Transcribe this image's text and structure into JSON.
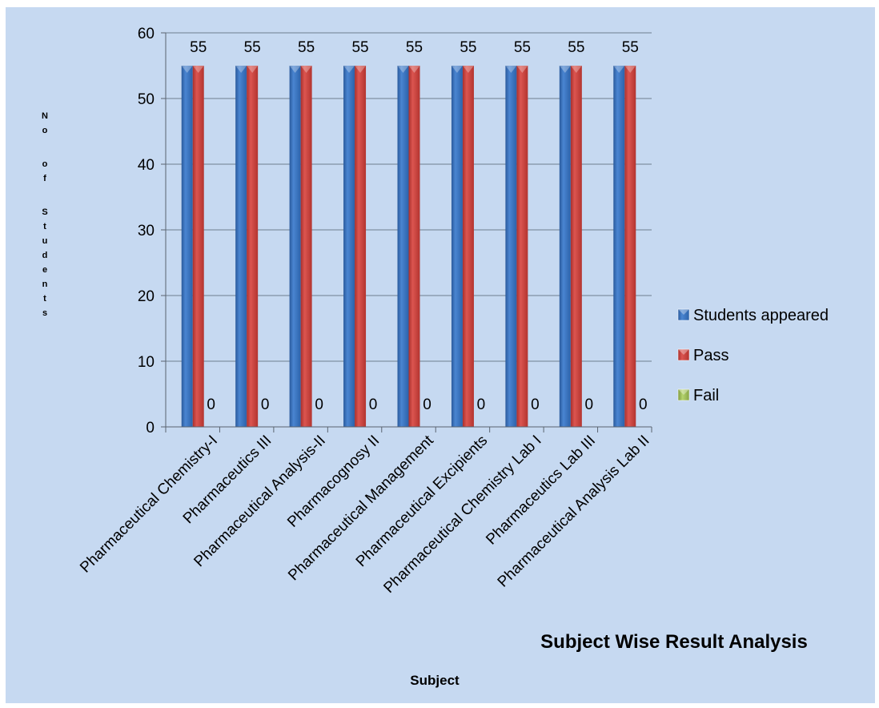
{
  "chart_data": {
    "type": "bar",
    "title": "Subject Wise Result Analysis",
    "xlabel": "Subject",
    "ylabel": "No of Students",
    "ylim": [
      0,
      60
    ],
    "yticks": [
      0,
      10,
      20,
      30,
      40,
      50,
      60
    ],
    "grid": true,
    "legend_position": "right",
    "categories": [
      "Pharmaceutical  Chemistry-I",
      "Pharmaceutics III",
      "Pharmaceutical Analysis-II",
      "Pharmacognosy II",
      "Pharmaceutical Management",
      "Pharmaceutical Excipients",
      "Pharmaceutical Chemistry Lab I",
      "Pharmaceutics Lab III",
      "Pharmaceutical Analysis Lab II"
    ],
    "series": [
      {
        "name": "Students appeared",
        "color": "#3a73be",
        "values": [
          55,
          55,
          55,
          55,
          55,
          55,
          55,
          55,
          55
        ]
      },
      {
        "name": "Pass",
        "color": "#c8413d",
        "values": [
          55,
          55,
          55,
          55,
          55,
          55,
          55,
          55,
          55
        ]
      },
      {
        "name": "Fail",
        "color": "#9bbb59",
        "values": [
          0,
          0,
          0,
          0,
          0,
          0,
          0,
          0,
          0
        ]
      }
    ],
    "data_labels": {
      "top": [
        "55",
        "55",
        "55",
        "55",
        "55",
        "55",
        "55",
        "55",
        "55"
      ],
      "bottom": [
        "0",
        "0",
        "0",
        "0",
        "0",
        "0",
        "0",
        "0",
        "0"
      ]
    }
  }
}
